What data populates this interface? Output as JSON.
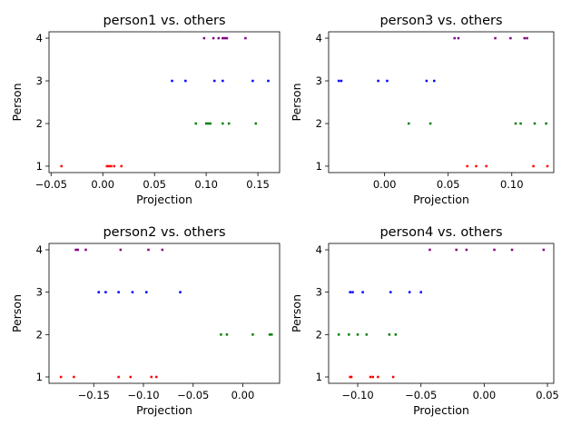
{
  "chart_data": [
    {
      "type": "scatter",
      "title": "person1 vs. others",
      "xlabel": "Projection",
      "ylabel": "Person",
      "xlim": [
        -0.052,
        0.171
      ],
      "ylim": [
        0.85,
        4.15
      ],
      "xticks": [
        -0.05,
        0.0,
        0.05,
        0.1,
        0.15
      ],
      "xtick_labels": [
        "−0.05",
        "0.00",
        "0.05",
        "0.10",
        "0.15"
      ],
      "yticks": [
        1,
        2,
        3,
        4
      ],
      "ytick_labels": [
        "1",
        "2",
        "3",
        "4"
      ],
      "series": [
        {
          "color": "#ff0000",
          "y": 1,
          "x": [
            -0.04,
            0.004,
            0.006,
            0.008,
            0.011,
            0.018
          ]
        },
        {
          "color": "#008000",
          "y": 2,
          "x": [
            0.09,
            0.1,
            0.102,
            0.104,
            0.116,
            0.122,
            0.148
          ]
        },
        {
          "color": "#0000ff",
          "y": 3,
          "x": [
            0.067,
            0.08,
            0.108,
            0.116,
            0.145,
            0.16
          ]
        },
        {
          "color": "#800080",
          "y": 4,
          "x": [
            0.098,
            0.107,
            0.112,
            0.116,
            0.118,
            0.12,
            0.138
          ]
        }
      ]
    },
    {
      "type": "scatter",
      "title": "person3 vs. others",
      "xlabel": "Projection",
      "ylabel": "Person",
      "xlim": [
        -0.044,
        0.133
      ],
      "ylim": [
        0.85,
        4.15
      ],
      "xticks": [
        0.0,
        0.05,
        0.1
      ],
      "xtick_labels": [
        "0.00",
        "0.05",
        "0.10"
      ],
      "yticks": [
        1,
        2,
        3,
        4
      ],
      "ytick_labels": [
        "1",
        "2",
        "3",
        "4"
      ],
      "series": [
        {
          "color": "#ff0000",
          "y": 1,
          "x": [
            0.065,
            0.072,
            0.08,
            0.117,
            0.128
          ]
        },
        {
          "color": "#008000",
          "y": 2,
          "x": [
            0.019,
            0.036,
            0.103,
            0.107,
            0.118,
            0.127
          ]
        },
        {
          "color": "#0000ff",
          "y": 3,
          "x": [
            -0.036,
            -0.034,
            -0.005,
            0.002,
            0.033,
            0.039
          ]
        },
        {
          "color": "#800080",
          "y": 4,
          "x": [
            0.055,
            0.058,
            0.087,
            0.099,
            0.11,
            0.112
          ]
        }
      ]
    },
    {
      "type": "scatter",
      "title": "person2 vs. others",
      "xlabel": "Projection",
      "ylabel": "Person",
      "xlim": [
        -0.195,
        0.037
      ],
      "ylim": [
        0.85,
        4.15
      ],
      "xticks": [
        -0.15,
        -0.1,
        -0.05,
        0.0
      ],
      "xtick_labels": [
        "−0.15",
        "−0.10",
        "−0.05",
        "0.00"
      ],
      "yticks": [
        1,
        2,
        3,
        4
      ],
      "ytick_labels": [
        "1",
        "2",
        "3",
        "4"
      ],
      "series": [
        {
          "color": "#ff0000",
          "y": 1,
          "x": [
            -0.183,
            -0.17,
            -0.125,
            -0.113,
            -0.092,
            -0.087
          ]
        },
        {
          "color": "#008000",
          "y": 2,
          "x": [
            -0.022,
            -0.016,
            0.01,
            0.027,
            0.029
          ]
        },
        {
          "color": "#0000ff",
          "y": 3,
          "x": [
            -0.145,
            -0.138,
            -0.125,
            -0.111,
            -0.097,
            -0.063
          ]
        },
        {
          "color": "#800080",
          "y": 4,
          "x": [
            -0.168,
            -0.166,
            -0.158,
            -0.123,
            -0.095,
            -0.081
          ]
        }
      ]
    },
    {
      "type": "scatter",
      "title": "person4 vs. others",
      "xlabel": "Projection",
      "ylabel": "Person",
      "xlim": [
        -0.123,
        0.055
      ],
      "ylim": [
        0.85,
        4.15
      ],
      "xticks": [
        -0.1,
        -0.05,
        0.0,
        0.05
      ],
      "xtick_labels": [
        "−0.10",
        "−0.05",
        "0.00",
        "0.05"
      ],
      "yticks": [
        1,
        2,
        3,
        4
      ],
      "ytick_labels": [
        "1",
        "2",
        "3",
        "4"
      ],
      "series": [
        {
          "color": "#ff0000",
          "y": 1,
          "x": [
            -0.106,
            -0.105,
            -0.09,
            -0.088,
            -0.084,
            -0.072
          ]
        },
        {
          "color": "#008000",
          "y": 2,
          "x": [
            -0.115,
            -0.107,
            -0.1,
            -0.093,
            -0.075,
            -0.07
          ]
        },
        {
          "color": "#0000ff",
          "y": 3,
          "x": [
            -0.106,
            -0.104,
            -0.096,
            -0.074,
            -0.059,
            -0.05
          ]
        },
        {
          "color": "#800080",
          "y": 4,
          "x": [
            -0.043,
            -0.022,
            -0.014,
            0.008,
            0.022,
            0.047
          ]
        }
      ]
    }
  ]
}
